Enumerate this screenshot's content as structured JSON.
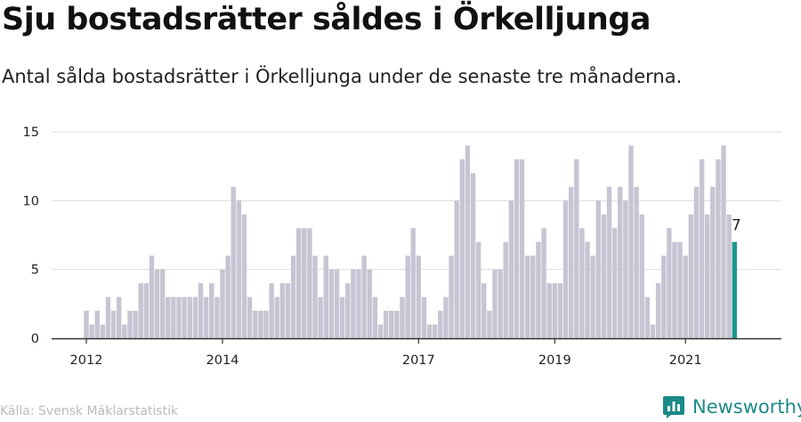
{
  "header": {
    "title": "Sju bostadsrätter såldes i Örkelljunga",
    "subtitle": "Antal sålda bostadsrätter i Örkelljunga under de senaste tre månaderna."
  },
  "footer": {
    "source": "Källa: Svensk Mäklarstatistik",
    "brand": "Newsworthy"
  },
  "colors": {
    "bar": "#c6c5d3",
    "highlight": "#1f9590",
    "grid": "#dddddd",
    "brand": "#1a8a88"
  },
  "chart_data": {
    "type": "bar",
    "title": "Sju bostadsrätter såldes i Örkelljunga",
    "xlabel": "",
    "ylabel": "",
    "ylim": [
      0,
      15
    ],
    "yticks": [
      0,
      5,
      10,
      15
    ],
    "xtick_labels": [
      {
        "label": "2012",
        "index": 0
      },
      {
        "label": "2014",
        "index": 25
      },
      {
        "label": "2017",
        "index": 61
      },
      {
        "label": "2019",
        "index": 86
      },
      {
        "label": "2021",
        "index": 110
      }
    ],
    "values": [
      2,
      1,
      2,
      1,
      3,
      2,
      3,
      1,
      2,
      2,
      4,
      4,
      6,
      5,
      5,
      3,
      3,
      3,
      3,
      3,
      3,
      4,
      3,
      4,
      3,
      5,
      6,
      11,
      10,
      9,
      3,
      2,
      2,
      2,
      4,
      3,
      4,
      4,
      6,
      8,
      8,
      8,
      6,
      3,
      6,
      5,
      5,
      3,
      4,
      5,
      5,
      6,
      5,
      3,
      1,
      2,
      2,
      2,
      3,
      6,
      8,
      6,
      3,
      1,
      1,
      2,
      3,
      6,
      10,
      13,
      14,
      12,
      7,
      4,
      2,
      5,
      5,
      7,
      10,
      13,
      13,
      6,
      6,
      7,
      8,
      4,
      4,
      4,
      10,
      11,
      13,
      8,
      7,
      6,
      10,
      9,
      11,
      8,
      11,
      10,
      14,
      11,
      9,
      3,
      1,
      4,
      6,
      8,
      7,
      7,
      6,
      9,
      11,
      13,
      9,
      11,
      13,
      14,
      9,
      7
    ],
    "highlight_index": 119,
    "highlight_label": "7"
  }
}
